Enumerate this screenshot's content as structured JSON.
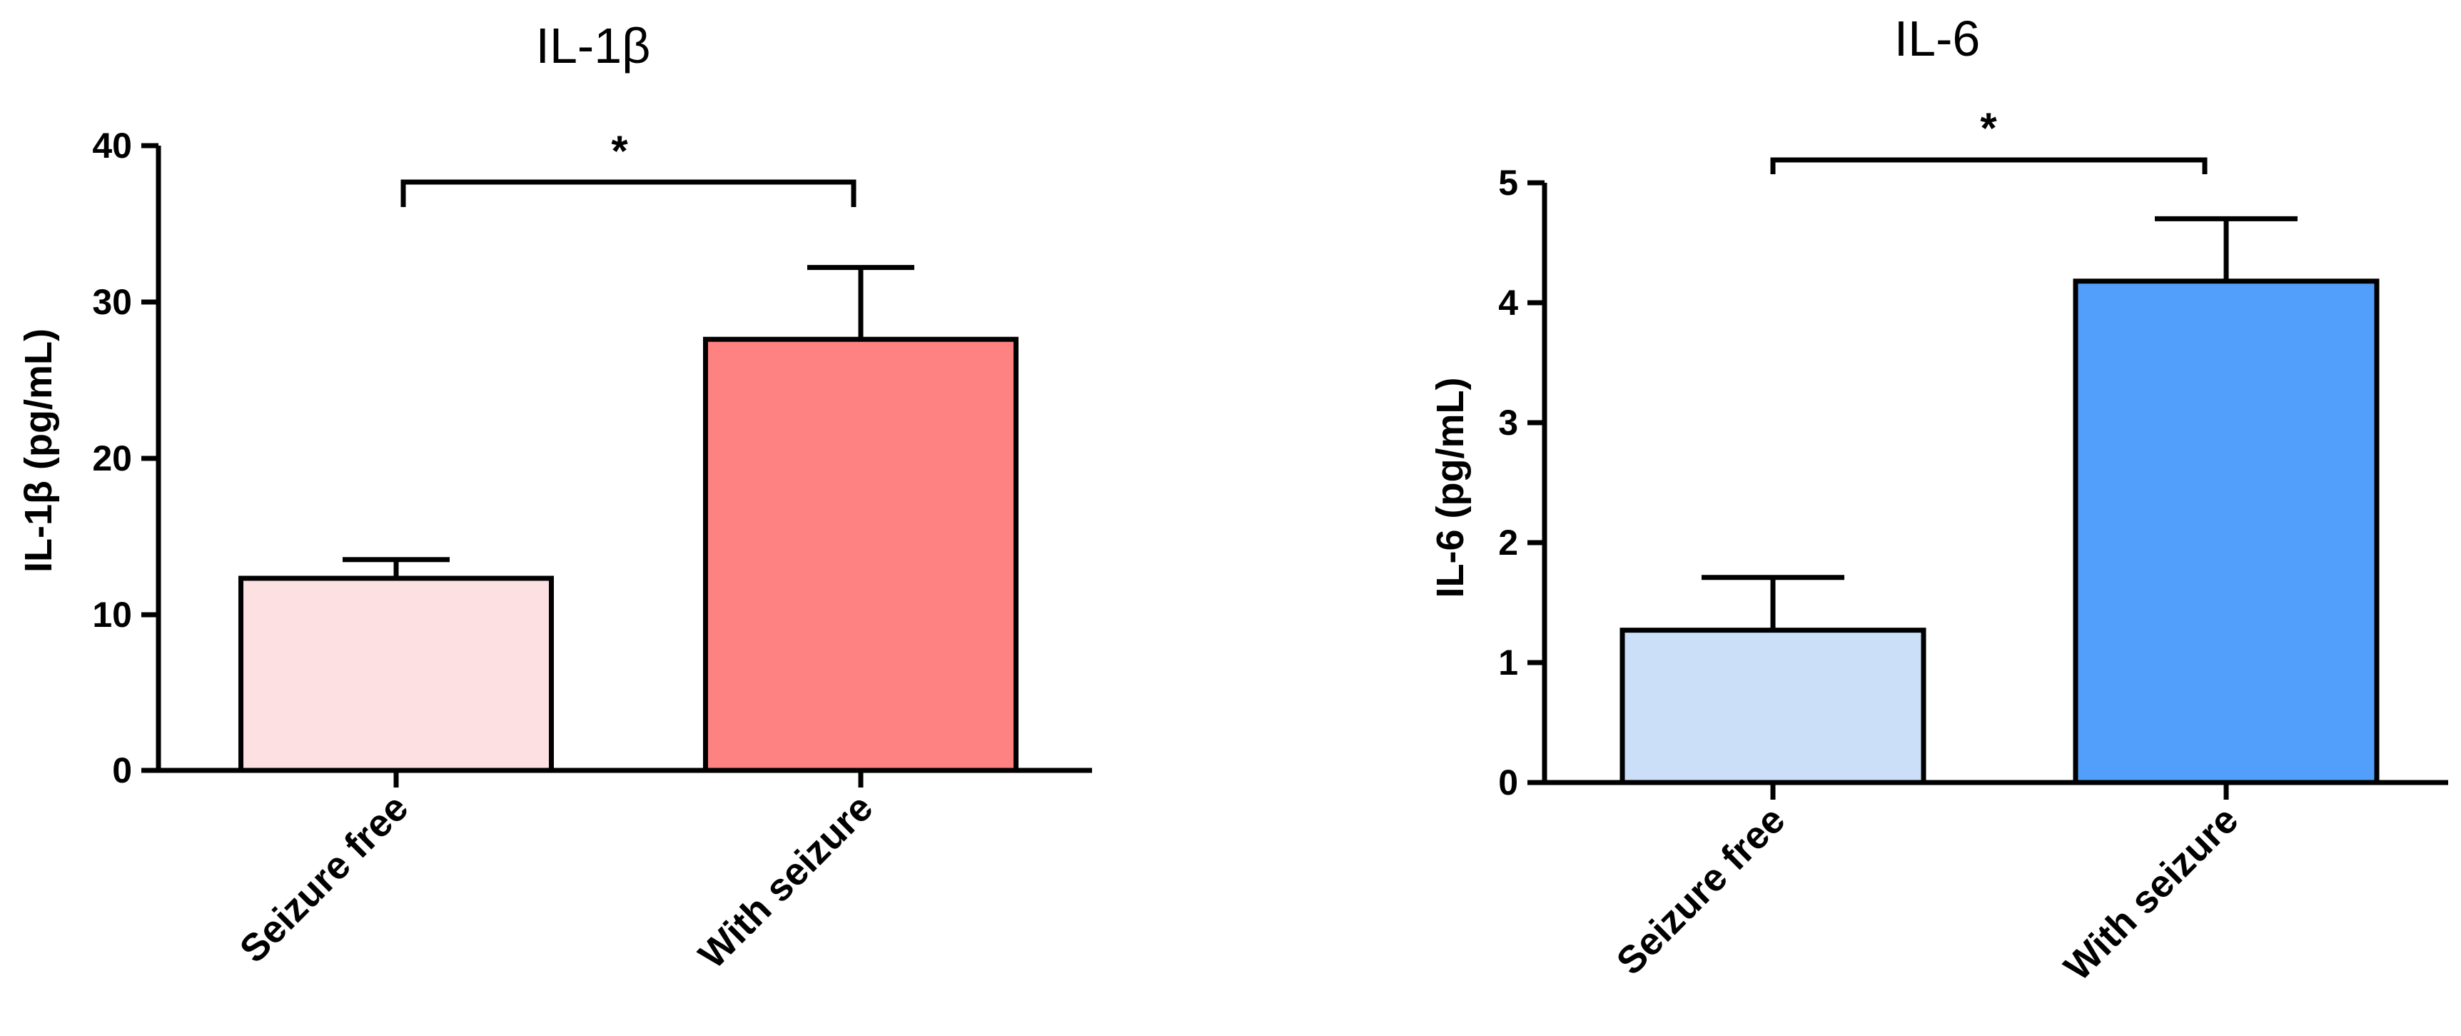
{
  "chart_data": [
    {
      "type": "bar",
      "title": "IL-1β",
      "ylabel": "IL-1β (pg/mL)",
      "xlabel": "",
      "categories": [
        "Seizure free",
        "With seizure"
      ],
      "values": [
        12.3,
        27.6
      ],
      "errors": [
        1.2,
        4.6
      ],
      "colors": [
        "#fde0e2",
        "#ff8282"
      ],
      "ylim": [
        0,
        40
      ],
      "yticks": [
        "0",
        "10",
        "20",
        "30",
        "40"
      ],
      "significance": "*",
      "grid": false
    },
    {
      "type": "bar",
      "title": "IL-6",
      "ylabel": "IL-6 (pg/mL)",
      "xlabel": "",
      "categories": [
        "Seizure free",
        "With seizure"
      ],
      "values": [
        1.27,
        4.18
      ],
      "errors": [
        0.44,
        0.52
      ],
      "colors": [
        "#cbdff8",
        "#529ffb"
      ],
      "ylim": [
        0,
        5
      ],
      "yticks": [
        "0",
        "1",
        "2",
        "3",
        "4",
        "5"
      ],
      "significance": "*",
      "grid": false
    }
  ]
}
